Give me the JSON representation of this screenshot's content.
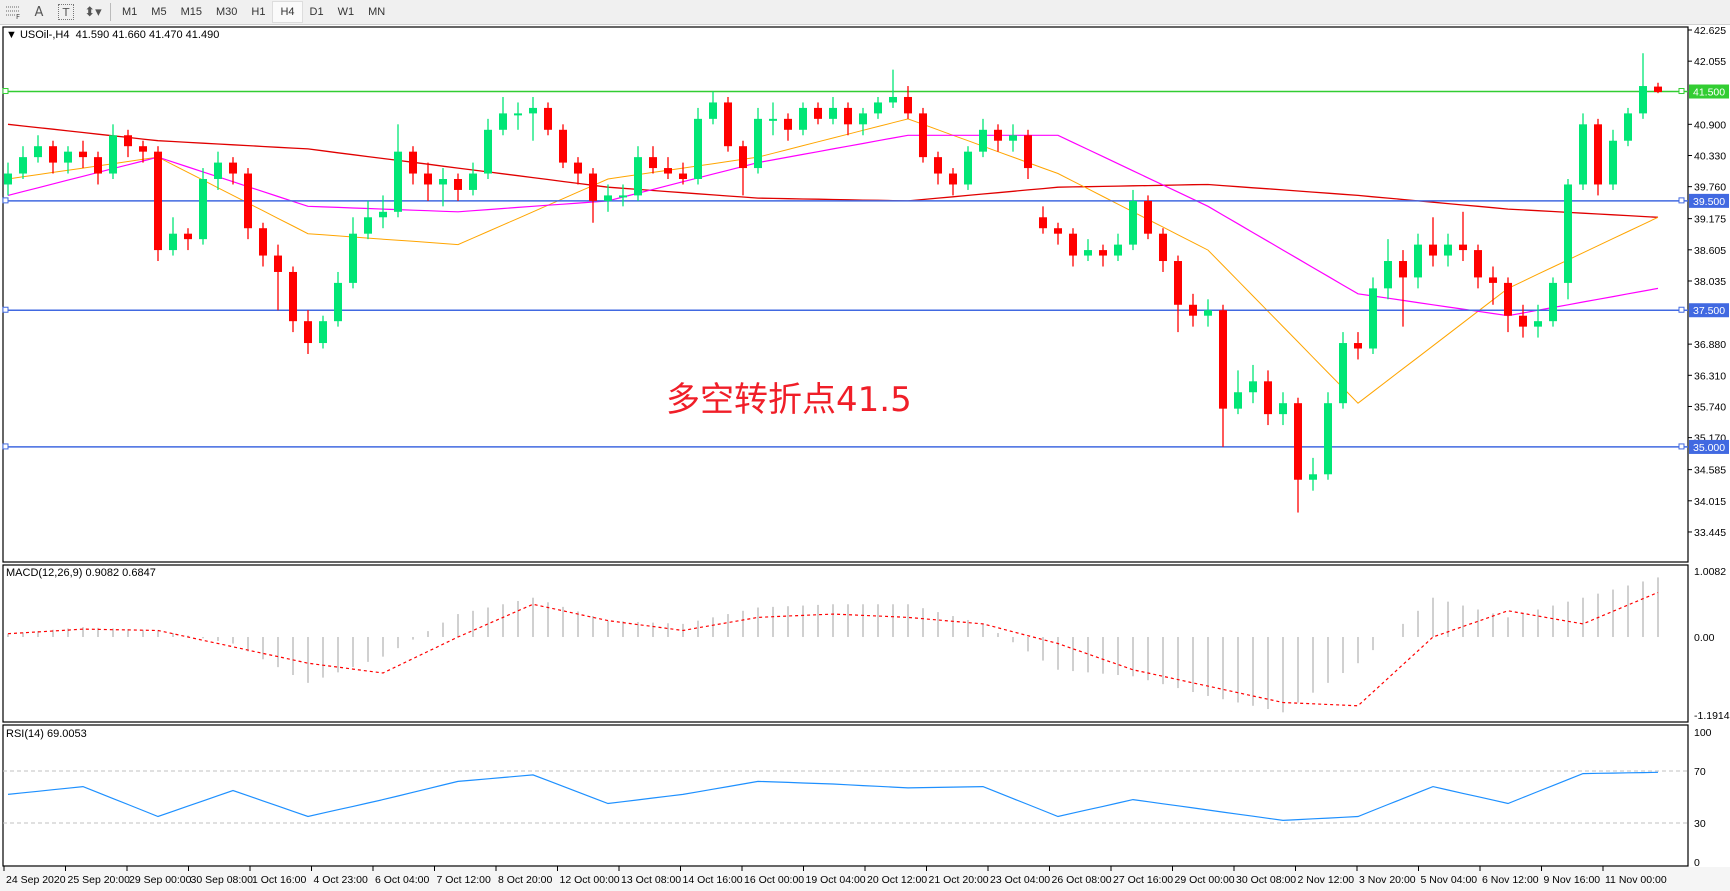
{
  "toolbar": {
    "tools": [
      {
        "icon": "fibonacci-fan-icon"
      },
      {
        "icon": "text-icon",
        "glyph": "A"
      },
      {
        "icon": "text-label-icon",
        "glyph": "T"
      },
      {
        "icon": "arrows-dropdown-icon",
        "glyph": "⬍▾"
      }
    ],
    "timeframes": [
      "M1",
      "M5",
      "M15",
      "M30",
      "H1",
      "H4",
      "D1",
      "W1",
      "MN"
    ],
    "active_timeframe": "H4"
  },
  "header": {
    "symbol_line": "USOil-,H4  41.590 41.660 41.470 41.490"
  },
  "macd_label": "MACD(12,26,9) 0.9082 0.6847",
  "rsi_label": "RSI(14) 69.0053",
  "annotation": "多空转折点41.5",
  "colors": {
    "bull": "#00e676",
    "bear": "#ff0000",
    "ma_slow": "#e00000",
    "ma_fast": "#ffa500",
    "ma_mid": "#ff00ff",
    "support": "#4169e1",
    "pivot": "#32cd32",
    "macd_hist": "#c0c0c0",
    "macd_signal": "#ff0000",
    "rsi": "#1e90ff"
  },
  "chart_data": [
    {
      "type": "candlestick",
      "symbol": "USOil-",
      "timeframe": "H4",
      "ylim": [
        33.445,
        42.625
      ],
      "price_ticks": [
        "42.625",
        "42.055",
        "40.900",
        "40.330",
        "39.760",
        "39.175",
        "38.605",
        "38.035",
        "36.880",
        "36.310",
        "35.740",
        "35.170",
        "34.585",
        "34.015",
        "33.445"
      ],
      "time_labels": [
        "24 Sep 2020",
        "25 Sep 20:00",
        "29 Sep 00:00",
        "30 Sep 08:00",
        "1 Oct 16:00",
        "4 Oct 23:00",
        "6 Oct 04:00",
        "7 Oct 12:00",
        "8 Oct 20:00",
        "12 Oct 00:00",
        "13 Oct 08:00",
        "14 Oct 16:00",
        "16 Oct 00:00",
        "19 Oct 04:00",
        "20 Oct 12:00",
        "21 Oct 20:00",
        "23 Oct 04:00",
        "26 Oct 08:00",
        "27 Oct 16:00",
        "29 Oct 00:00",
        "30 Oct 08:00",
        "2 Nov 12:00",
        "3 Nov 20:00",
        "5 Nov 04:00",
        "6 Nov 12:00",
        "9 Nov 16:00",
        "11 Nov 00:00"
      ],
      "horizontal_lines": [
        {
          "value": 41.5,
          "label": "41.500",
          "color": "#32cd32"
        },
        {
          "value": 39.5,
          "label": "39.500",
          "color": "#4169e1"
        },
        {
          "value": 37.5,
          "label": "37.500",
          "color": "#4169e1"
        },
        {
          "value": 35.0,
          "label": "35.000",
          "color": "#4169e1"
        }
      ],
      "ohlc": [
        [
          39.8,
          40.2,
          39.6,
          40.0
        ],
        [
          40.0,
          40.5,
          39.9,
          40.3
        ],
        [
          40.3,
          40.7,
          40.2,
          40.5
        ],
        [
          40.5,
          40.6,
          40.0,
          40.2
        ],
        [
          40.2,
          40.5,
          40.0,
          40.4
        ],
        [
          40.4,
          40.6,
          40.1,
          40.3
        ],
        [
          40.3,
          40.4,
          39.8,
          40.0
        ],
        [
          40.0,
          40.9,
          39.9,
          40.7
        ],
        [
          40.7,
          40.8,
          40.3,
          40.5
        ],
        [
          40.5,
          40.6,
          40.2,
          40.4
        ],
        [
          40.4,
          40.5,
          38.4,
          38.6
        ],
        [
          38.6,
          39.2,
          38.5,
          38.9
        ],
        [
          38.9,
          39.0,
          38.6,
          38.8
        ],
        [
          38.8,
          40.1,
          38.7,
          39.9
        ],
        [
          39.9,
          40.4,
          39.7,
          40.2
        ],
        [
          40.2,
          40.3,
          39.8,
          40.0
        ],
        [
          40.0,
          40.1,
          38.8,
          39.0
        ],
        [
          39.0,
          39.1,
          38.3,
          38.5
        ],
        [
          38.5,
          38.7,
          37.5,
          38.2
        ],
        [
          38.2,
          38.3,
          37.1,
          37.3
        ],
        [
          37.3,
          37.5,
          36.7,
          36.9
        ],
        [
          36.9,
          37.4,
          36.8,
          37.3
        ],
        [
          37.3,
          38.2,
          37.2,
          38.0
        ],
        [
          38.0,
          39.2,
          37.9,
          38.9
        ],
        [
          38.9,
          39.5,
          38.8,
          39.2
        ],
        [
          39.2,
          39.6,
          39.0,
          39.3
        ],
        [
          39.3,
          40.9,
          39.2,
          40.4
        ],
        [
          40.4,
          40.5,
          39.8,
          40.0
        ],
        [
          40.0,
          40.2,
          39.5,
          39.8
        ],
        [
          39.8,
          40.1,
          39.4,
          39.9
        ],
        [
          39.9,
          40.0,
          39.5,
          39.7
        ],
        [
          39.7,
          40.2,
          39.6,
          40.0
        ],
        [
          40.0,
          41.0,
          39.9,
          40.8
        ],
        [
          40.8,
          41.4,
          40.7,
          41.1
        ],
        [
          41.1,
          41.3,
          40.8,
          41.1
        ],
        [
          41.1,
          41.4,
          40.6,
          41.2
        ],
        [
          41.2,
          41.3,
          40.7,
          40.8
        ],
        [
          40.8,
          40.9,
          40.1,
          40.2
        ],
        [
          40.2,
          40.3,
          39.8,
          40.0
        ],
        [
          40.0,
          40.1,
          39.1,
          39.5
        ],
        [
          39.5,
          39.8,
          39.3,
          39.6
        ],
        [
          39.6,
          39.8,
          39.4,
          39.6
        ],
        [
          39.6,
          40.5,
          39.5,
          40.3
        ],
        [
          40.3,
          40.5,
          40.0,
          40.1
        ],
        [
          40.1,
          40.3,
          39.9,
          40.0
        ],
        [
          40.0,
          40.2,
          39.8,
          39.9
        ],
        [
          39.9,
          41.2,
          39.8,
          41.0
        ],
        [
          41.0,
          41.5,
          40.9,
          41.3
        ],
        [
          41.3,
          41.4,
          40.4,
          40.5
        ],
        [
          40.5,
          40.6,
          39.6,
          40.1
        ],
        [
          40.1,
          41.2,
          40.0,
          41.0
        ],
        [
          41.0,
          41.3,
          40.7,
          41.0
        ],
        [
          41.0,
          41.1,
          40.6,
          40.8
        ],
        [
          40.8,
          41.3,
          40.7,
          41.2
        ],
        [
          41.2,
          41.3,
          40.9,
          41.0
        ],
        [
          41.0,
          41.4,
          40.9,
          41.2
        ],
        [
          41.2,
          41.3,
          40.7,
          40.9
        ],
        [
          40.9,
          41.2,
          40.7,
          41.1
        ],
        [
          41.1,
          41.4,
          41.0,
          41.3
        ],
        [
          41.3,
          41.9,
          41.2,
          41.4
        ],
        [
          41.4,
          41.6,
          41.0,
          41.1
        ],
        [
          41.1,
          41.2,
          40.2,
          40.3
        ],
        [
          40.3,
          40.4,
          39.8,
          40.0
        ],
        [
          40.0,
          40.1,
          39.6,
          39.8
        ],
        [
          39.8,
          40.5,
          39.7,
          40.4
        ],
        [
          40.4,
          41.0,
          40.3,
          40.8
        ],
        [
          40.8,
          40.9,
          40.4,
          40.6
        ],
        [
          40.6,
          40.9,
          40.4,
          40.7
        ],
        [
          40.7,
          40.8,
          39.9,
          40.1
        ],
        [
          39.2,
          39.4,
          38.9,
          39.0
        ],
        [
          39.0,
          39.1,
          38.7,
          38.9
        ],
        [
          38.9,
          39.0,
          38.3,
          38.5
        ],
        [
          38.5,
          38.8,
          38.4,
          38.6
        ],
        [
          38.6,
          38.7,
          38.3,
          38.5
        ],
        [
          38.5,
          38.9,
          38.4,
          38.7
        ],
        [
          38.7,
          39.7,
          38.6,
          39.5
        ],
        [
          39.5,
          39.6,
          38.8,
          38.9
        ],
        [
          38.9,
          39.0,
          38.2,
          38.4
        ],
        [
          38.4,
          38.5,
          37.1,
          37.6
        ],
        [
          37.6,
          37.8,
          37.2,
          37.4
        ],
        [
          37.4,
          37.7,
          37.2,
          37.5
        ],
        [
          37.5,
          37.6,
          35.0,
          35.7
        ],
        [
          35.7,
          36.4,
          35.6,
          36.0
        ],
        [
          36.0,
          36.5,
          35.8,
          36.2
        ],
        [
          36.2,
          36.4,
          35.4,
          35.6
        ],
        [
          35.6,
          36.0,
          35.4,
          35.8
        ],
        [
          35.8,
          35.9,
          33.8,
          34.4
        ],
        [
          34.4,
          34.8,
          34.2,
          34.5
        ],
        [
          34.5,
          36.0,
          34.4,
          35.8
        ],
        [
          35.8,
          37.1,
          35.7,
          36.9
        ],
        [
          36.9,
          37.1,
          36.6,
          36.8
        ],
        [
          36.8,
          38.1,
          36.7,
          37.9
        ],
        [
          37.9,
          38.8,
          37.7,
          38.4
        ],
        [
          38.4,
          38.6,
          37.2,
          38.1
        ],
        [
          38.1,
          38.9,
          37.9,
          38.7
        ],
        [
          38.7,
          39.2,
          38.3,
          38.5
        ],
        [
          38.5,
          38.9,
          38.3,
          38.7
        ],
        [
          38.7,
          39.3,
          38.4,
          38.6
        ],
        [
          38.6,
          38.7,
          37.9,
          38.1
        ],
        [
          38.1,
          38.3,
          37.6,
          38.0
        ],
        [
          38.0,
          38.1,
          37.1,
          37.4
        ],
        [
          37.4,
          37.6,
          37.0,
          37.2
        ],
        [
          37.2,
          37.6,
          37.0,
          37.3
        ],
        [
          37.3,
          38.1,
          37.2,
          38.0
        ],
        [
          38.0,
          39.9,
          37.7,
          39.8
        ],
        [
          39.8,
          41.1,
          39.7,
          40.9
        ],
        [
          40.9,
          41.0,
          39.6,
          39.8
        ],
        [
          39.8,
          40.8,
          39.7,
          40.6
        ],
        [
          40.6,
          41.2,
          40.5,
          41.1
        ],
        [
          41.1,
          42.2,
          41.0,
          41.6
        ],
        [
          41.59,
          41.66,
          41.47,
          41.49
        ]
      ],
      "moving_averages_every_10_bars": {
        "slow_red": [
          40.9,
          40.6,
          40.45,
          40.1,
          39.75,
          39.55,
          39.5,
          39.75,
          39.8,
          39.6,
          39.35,
          39.2
        ],
        "fast_orange": [
          39.9,
          40.3,
          38.9,
          38.7,
          39.9,
          40.3,
          41.0,
          40.0,
          38.6,
          35.8,
          37.9,
          39.2
        ],
        "mid_magenta": [
          39.6,
          40.3,
          39.4,
          39.3,
          39.5,
          40.2,
          40.7,
          40.7,
          39.4,
          37.8,
          37.4,
          37.9
        ]
      }
    },
    {
      "type": "bar+line",
      "indicator": "MACD(12,26,9)",
      "ylim": [
        -1.1914,
        1.0082
      ],
      "ticks": [
        "1.0082",
        "0.00",
        "-1.1914"
      ],
      "every_5_bars_histogram": [
        0.05,
        0.15,
        0.1,
        -0.1,
        -0.7,
        -0.3,
        0.35,
        0.6,
        0.25,
        0.2,
        0.45,
        0.5,
        0.5,
        0.2,
        -0.5,
        -0.6,
        -0.9,
        -1.15,
        -0.4,
        0.6,
        0.3,
        0.6,
        0.91
      ],
      "every_5_bars_signal": [
        0.05,
        0.12,
        0.1,
        -0.15,
        -0.4,
        -0.55,
        0.0,
        0.5,
        0.25,
        0.1,
        0.3,
        0.35,
        0.3,
        0.2,
        -0.1,
        -0.5,
        -0.75,
        -1.0,
        -1.05,
        0.0,
        0.4,
        0.2,
        0.68
      ]
    },
    {
      "type": "line",
      "indicator": "RSI(14)",
      "ylim": [
        0,
        100
      ],
      "ticks": [
        "100",
        "70",
        "30",
        "0"
      ],
      "levels": [
        70,
        30
      ],
      "every_5_bars": [
        52,
        58,
        35,
        55,
        35,
        48,
        62,
        67,
        45,
        52,
        62,
        60,
        57,
        58,
        35,
        48,
        40,
        32,
        35,
        58,
        45,
        68,
        69
      ]
    }
  ]
}
